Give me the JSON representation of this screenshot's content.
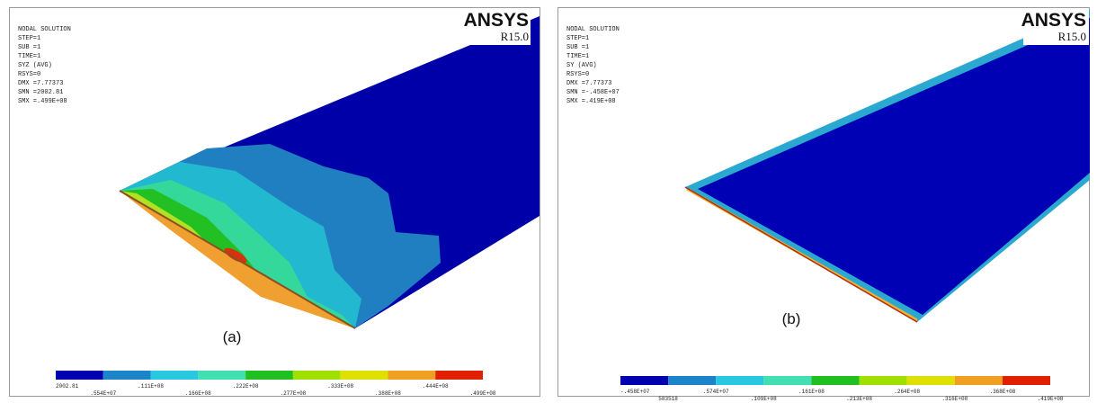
{
  "panels": [
    {
      "header_lines": [
        "NODAL SOLUTION",
        "STEP=1",
        "SUB =1",
        "TIME=1",
        "SYZ      (AVG)",
        "RSYS=0",
        "DMX =7.77373",
        "SMN =2002.81",
        "SMX =.499E+08"
      ],
      "logo": {
        "brand": "ANSYS",
        "release": "R15.0"
      },
      "caption": "(a)",
      "legend": {
        "upper_labels": [
          "2002.81",
          ".111E+08",
          ".222E+08",
          ".333E+08",
          ".444E+08"
        ],
        "lower_labels": [
          ".554E+07",
          ".166E+08",
          ".277E+08",
          ".388E+08",
          ".499E+08"
        ]
      }
    },
    {
      "header_lines": [
        "NODAL SOLUTION",
        "STEP=1",
        "SUB =1",
        "TIME=1",
        "SY       (AVG)",
        "RSYS=0",
        "DMX =7.77373",
        "SMN =-.458E+07",
        "SMX =.419E+08"
      ],
      "logo": {
        "brand": "ANSYS",
        "release": "R15.0"
      },
      "caption": "(b)",
      "legend": {
        "upper_labels": [
          "-.458E+07",
          ".574E+07",
          ".161E+08",
          ".264E+08",
          ".368E+08"
        ],
        "lower_labels": [
          "583518",
          ".109E+08",
          ".213E+08",
          ".316E+08",
          ".419E+08"
        ]
      }
    }
  ]
}
